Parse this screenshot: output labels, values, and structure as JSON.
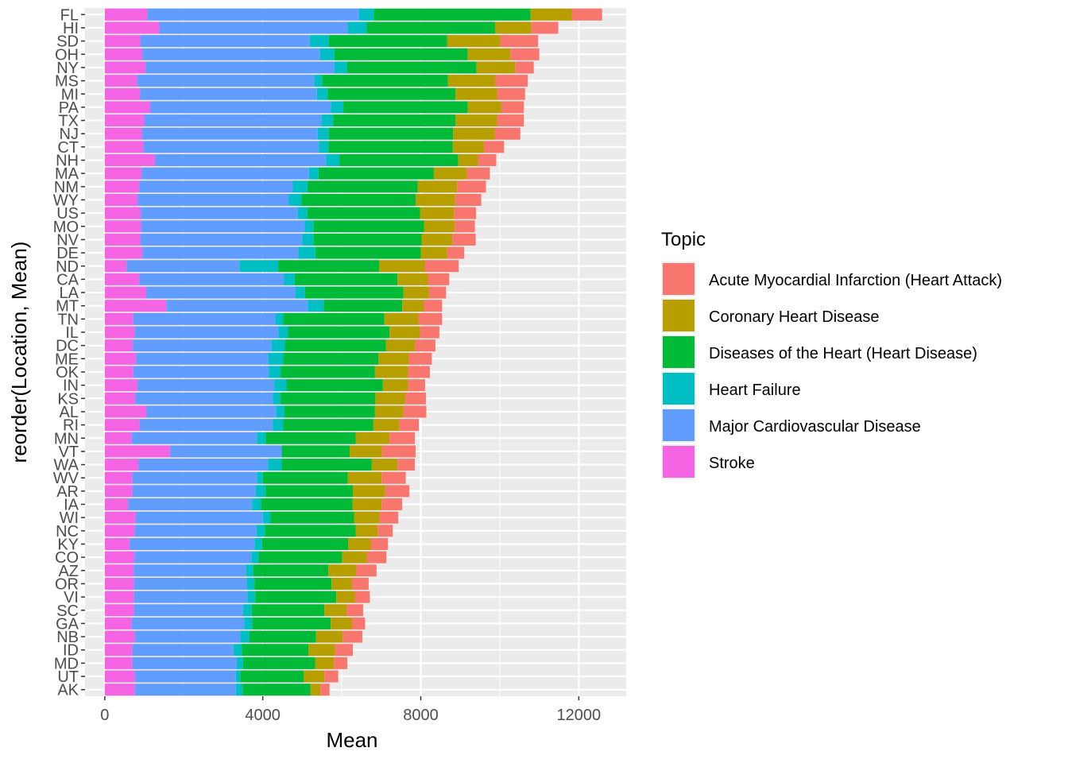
{
  "chart_data": {
    "type": "bar",
    "orientation": "horizontal",
    "stacked": true,
    "xlabel": "Mean",
    "ylabel": "reorder(Location, Mean)",
    "xlim": [
      -500,
      13200
    ],
    "xticks": [
      0,
      4000,
      8000,
      12000
    ],
    "xtick_labels": [
      "0",
      "4000",
      "8000",
      "12000"
    ],
    "grid": true,
    "legend": {
      "title": "Topic",
      "position": "right"
    },
    "categories": [
      "FL",
      "HI",
      "SD",
      "OH",
      "NY",
      "MS",
      "MI",
      "PA",
      "TX",
      "NJ",
      "CT",
      "NH",
      "MA",
      "NM",
      "WY",
      "US",
      "MO",
      "NV",
      "DE",
      "ND",
      "CA",
      "LA",
      "MT",
      "TN",
      "IL",
      "DC",
      "ME",
      "OK",
      "IN",
      "KS",
      "AL",
      "RI",
      "MN",
      "VT",
      "WA",
      "WV",
      "AR",
      "IA",
      "WI",
      "NC",
      "KY",
      "CO",
      "AZ",
      "OR",
      "VI",
      "SC",
      "GA",
      "NB",
      "ID",
      "MD",
      "UT",
      "AK"
    ],
    "series": [
      {
        "name": "Stroke",
        "color": "#F564E3",
        "values": [
          1080,
          1380,
          900,
          950,
          1030,
          820,
          890,
          1150,
          1000,
          940,
          980,
          1270,
          930,
          870,
          830,
          910,
          920,
          900,
          950,
          550,
          870,
          1050,
          1560,
          720,
          760,
          710,
          790,
          720,
          830,
          770,
          1050,
          880,
          680,
          1650,
          850,
          700,
          700,
          590,
          780,
          760,
          630,
          750,
          730,
          740,
          740,
          740,
          680,
          760,
          700,
          700,
          760,
          760
        ]
      },
      {
        "name": "Major Cardiovascular Disease",
        "color": "#619CFF",
        "values": [
          5360,
          4770,
          4290,
          4500,
          4780,
          4480,
          4480,
          4570,
          4480,
          4450,
          4440,
          4330,
          4240,
          3890,
          3830,
          3980,
          4140,
          4100,
          3950,
          2860,
          3670,
          3780,
          3580,
          3600,
          3640,
          3510,
          3350,
          3430,
          3460,
          3480,
          3290,
          3370,
          3170,
          2830,
          3280,
          3150,
          3120,
          3140,
          3220,
          3080,
          3160,
          2960,
          2840,
          2850,
          2870,
          2760,
          2850,
          2670,
          2560,
          2640,
          2560,
          2560
        ]
      },
      {
        "name": "Heart Failure",
        "color": "#00BFC4",
        "values": [
          370,
          480,
          480,
          360,
          320,
          200,
          270,
          320,
          300,
          280,
          240,
          340,
          240,
          370,
          320,
          240,
          220,
          280,
          430,
          980,
          270,
          240,
          400,
          200,
          240,
          340,
          380,
          300,
          310,
          200,
          210,
          270,
          220,
          0,
          350,
          150,
          250,
          220,
          190,
          210,
          190,
          180,
          190,
          200,
          200,
          220,
          200,
          230,
          210,
          160,
          110,
          170
        ]
      },
      {
        "name": "Diseases of the Heart (Heart Disease)",
        "color": "#00BA38",
        "values": [
          3970,
          3250,
          3000,
          3380,
          3280,
          3190,
          3240,
          3150,
          3100,
          3150,
          3150,
          3010,
          2920,
          2790,
          2890,
          2850,
          2800,
          2740,
          2670,
          2560,
          2600,
          2490,
          1990,
          2560,
          2570,
          2560,
          2410,
          2390,
          2440,
          2400,
          2290,
          2280,
          2280,
          1720,
          2280,
          2150,
          2210,
          2320,
          2120,
          2300,
          2180,
          2120,
          1900,
          1950,
          2050,
          1840,
          1990,
          1690,
          1690,
          1830,
          1610,
          1720
        ]
      },
      {
        "name": "Coronary Heart Disease",
        "color": "#B79F00",
        "values": [
          1050,
          920,
          1350,
          1080,
          980,
          1190,
          1050,
          850,
          1050,
          1050,
          790,
          500,
          840,
          1000,
          1000,
          860,
          780,
          780,
          670,
          1150,
          780,
          650,
          550,
          860,
          770,
          730,
          770,
          840,
          640,
          760,
          720,
          650,
          860,
          820,
          650,
          860,
          820,
          740,
          650,
          560,
          580,
          630,
          700,
          520,
          470,
          560,
          540,
          670,
          670,
          470,
          520,
          250
        ]
      },
      {
        "name": "Acute Myocardial Infarction (Heart Attack)",
        "color": "#F8766D",
        "values": [
          760,
          680,
          950,
          730,
          470,
          830,
          710,
          570,
          680,
          650,
          510,
          460,
          580,
          730,
          660,
          560,
          510,
          590,
          430,
          860,
          530,
          430,
          460,
          600,
          490,
          520,
          580,
          550,
          430,
          520,
          580,
          500,
          640,
          850,
          440,
          610,
          610,
          520,
          470,
          380,
          430,
          490,
          520,
          420,
          380,
          420,
          330,
          500,
          450,
          340,
          350,
          230
        ]
      }
    ]
  }
}
